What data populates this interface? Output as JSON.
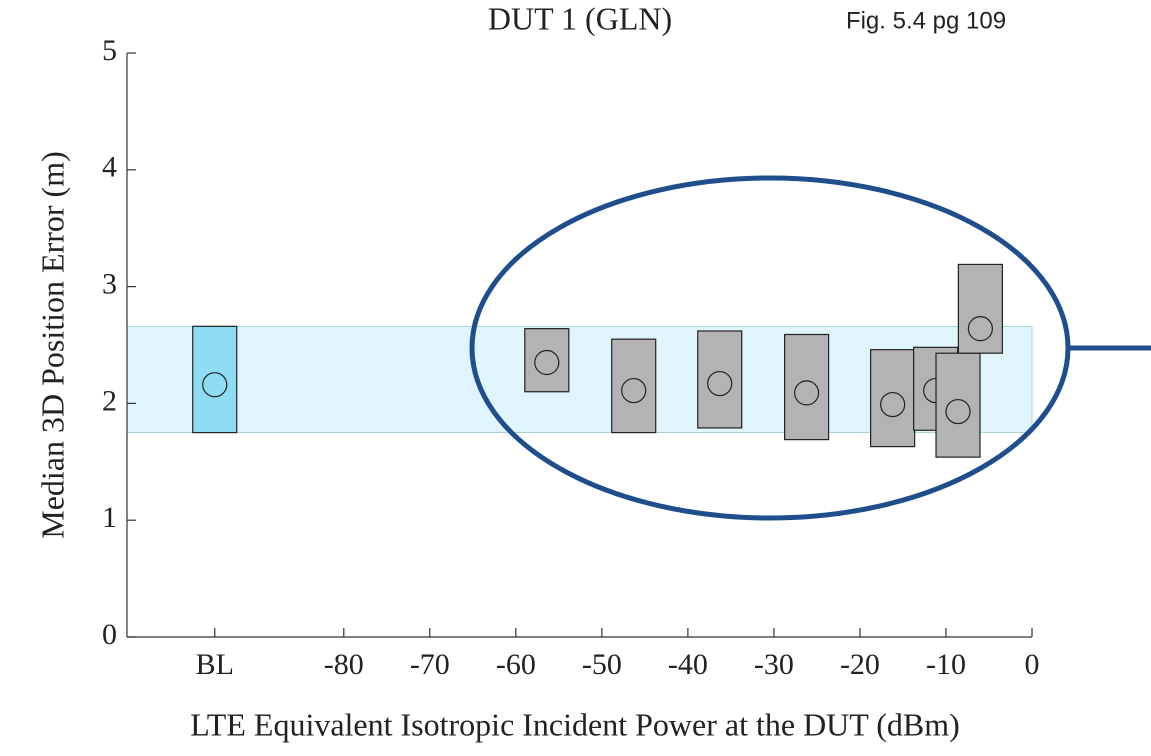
{
  "chart_data": {
    "type": "range",
    "title": "DUT 1 (GLN)",
    "annotation": "Fig. 5.4 pg 109",
    "x_label": "LTE Equivalent Isotropic Incident Power at the DUT (dBm)",
    "y_label": "Median 3D Position Error (m)",
    "xlim": [
      -105.2,
      0
    ],
    "ylim": [
      0,
      5
    ],
    "xticks": [
      {
        "value": -95,
        "label": "BL"
      },
      -80,
      -70,
      -60,
      -50,
      -40,
      -30,
      -20,
      -10,
      0
    ],
    "yticks": [
      0,
      1,
      2,
      3,
      4,
      5
    ],
    "band_color": "#dff4fb",
    "series": [
      {
        "color": "#8fdcf5",
        "x": [
          -95
        ],
        "low": [
          1.75
        ],
        "high": [
          2.66
        ],
        "median": [
          2.16
        ]
      },
      {
        "color": "#b3b3b3",
        "x": [
          -56.4,
          -46.3,
          -36.3,
          -26.2,
          -16.2,
          -11.2,
          -8.6,
          -6.0
        ],
        "low": [
          2.1,
          1.75,
          1.79,
          1.69,
          1.63,
          1.77,
          1.54,
          2.43
        ],
        "high": [
          2.64,
          2.55,
          2.62,
          2.59,
          2.46,
          2.48,
          2.43,
          3.19
        ],
        "median": [
          2.35,
          2.11,
          2.17,
          2.09,
          1.99,
          2.11,
          1.93,
          2.64
        ]
      }
    ]
  }
}
